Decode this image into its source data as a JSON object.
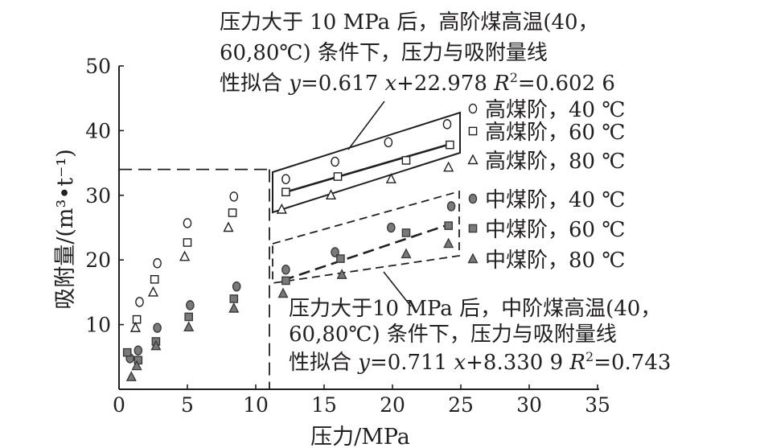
{
  "chart_data": {
    "type": "scatter",
    "xlabel": "压力/MPa",
    "ylabel": "吸附量/(m³•t⁻¹)",
    "xlim": [
      0,
      35
    ],
    "ylim": [
      0,
      50
    ],
    "x_ticks": [
      "0",
      "5",
      "10",
      "15",
      "20",
      "25",
      "30",
      "35"
    ],
    "y_ticks": [
      "10",
      "20",
      "30",
      "40",
      "50"
    ],
    "reference_lines": {
      "x": 11,
      "y": 34
    },
    "series": [
      {
        "name": "高煤阶，40 ℃",
        "marker": "circle",
        "filled": false,
        "x": [
          1.5,
          2.8,
          5.0,
          8.4,
          12.2,
          15.8,
          19.7,
          24.0
        ],
        "y": [
          13.5,
          19.5,
          25.7,
          29.8,
          32.5,
          35.2,
          38.2,
          41.0
        ]
      },
      {
        "name": "高煤阶，60 ℃",
        "marker": "square",
        "filled": false,
        "x": [
          1.3,
          2.6,
          5.0,
          8.3,
          12.2,
          16.0,
          21.0,
          24.2
        ],
        "y": [
          10.8,
          17.0,
          22.7,
          27.3,
          30.5,
          32.9,
          35.4,
          37.8
        ]
      },
      {
        "name": "高煤阶，80 ℃",
        "marker": "triangle",
        "filled": false,
        "x": [
          1.2,
          2.5,
          4.8,
          8.0,
          11.9,
          15.5,
          19.9,
          24.1
        ],
        "y": [
          9.5,
          15.0,
          20.5,
          25.0,
          27.8,
          30.0,
          32.5,
          34.3
        ]
      },
      {
        "name": "中煤阶，40 ℃",
        "marker": "circle",
        "filled": true,
        "x": [
          0.8,
          1.4,
          2.8,
          5.2,
          8.6,
          12.2,
          15.8,
          19.9,
          24.3
        ],
        "y": [
          4.8,
          6.0,
          9.5,
          13.0,
          15.9,
          18.5,
          21.2,
          25.0,
          28.3
        ]
      },
      {
        "name": "中煤阶，60 ℃",
        "marker": "square",
        "filled": true,
        "x": [
          0.6,
          1.4,
          2.7,
          5.1,
          8.4,
          12.2,
          16.2,
          21.0,
          24.1
        ],
        "y": [
          5.7,
          4.5,
          7.4,
          11.2,
          14.0,
          16.8,
          20.2,
          24.2,
          25.3
        ]
      },
      {
        "name": "中煤阶，80 ℃",
        "marker": "triangle",
        "filled": true,
        "x": [
          0.9,
          1.3,
          2.7,
          5.1,
          8.4,
          12.0,
          16.3,
          21.0,
          24.1
        ],
        "y": [
          1.9,
          3.6,
          6.7,
          9.6,
          12.5,
          14.8,
          17.7,
          20.9,
          22.5
        ]
      }
    ],
    "fits": [
      {
        "label": "高煤阶",
        "style": "solid",
        "slope": 0.617,
        "intercept": 22.978,
        "x_range": [
          12,
          24.2
        ]
      },
      {
        "label": "中煤阶",
        "style": "dashed",
        "slope": 0.711,
        "intercept": 8.3309,
        "x_range": [
          12,
          24.2
        ]
      }
    ],
    "annotations": [
      {
        "lines": [
          "压力大于 10 MPa 后，高阶煤高温(40，",
          "60,80℃) 条件下，压力与吸附量线"
        ],
        "eq_prefix": "性拟合 ",
        "eq_y": "y",
        "eq_mid": "=0.617 ",
        "eq_x": "x",
        "eq_rest": "+22.978  ",
        "eq_R": "R",
        "eq_sup": "2",
        "eq_val": "=0.602 6"
      },
      {
        "lines": [
          "压力大于10 MPa 后，中阶煤高温(40，",
          "60,80℃) 条件下，压力与吸附量线"
        ],
        "eq_prefix": "性拟合 ",
        "eq_y": "y",
        "eq_mid": "=0.711 ",
        "eq_x": "x",
        "eq_rest": "+8.330 9 ",
        "eq_R": "R",
        "eq_sup": "2",
        "eq_val": "=0.743"
      }
    ]
  }
}
